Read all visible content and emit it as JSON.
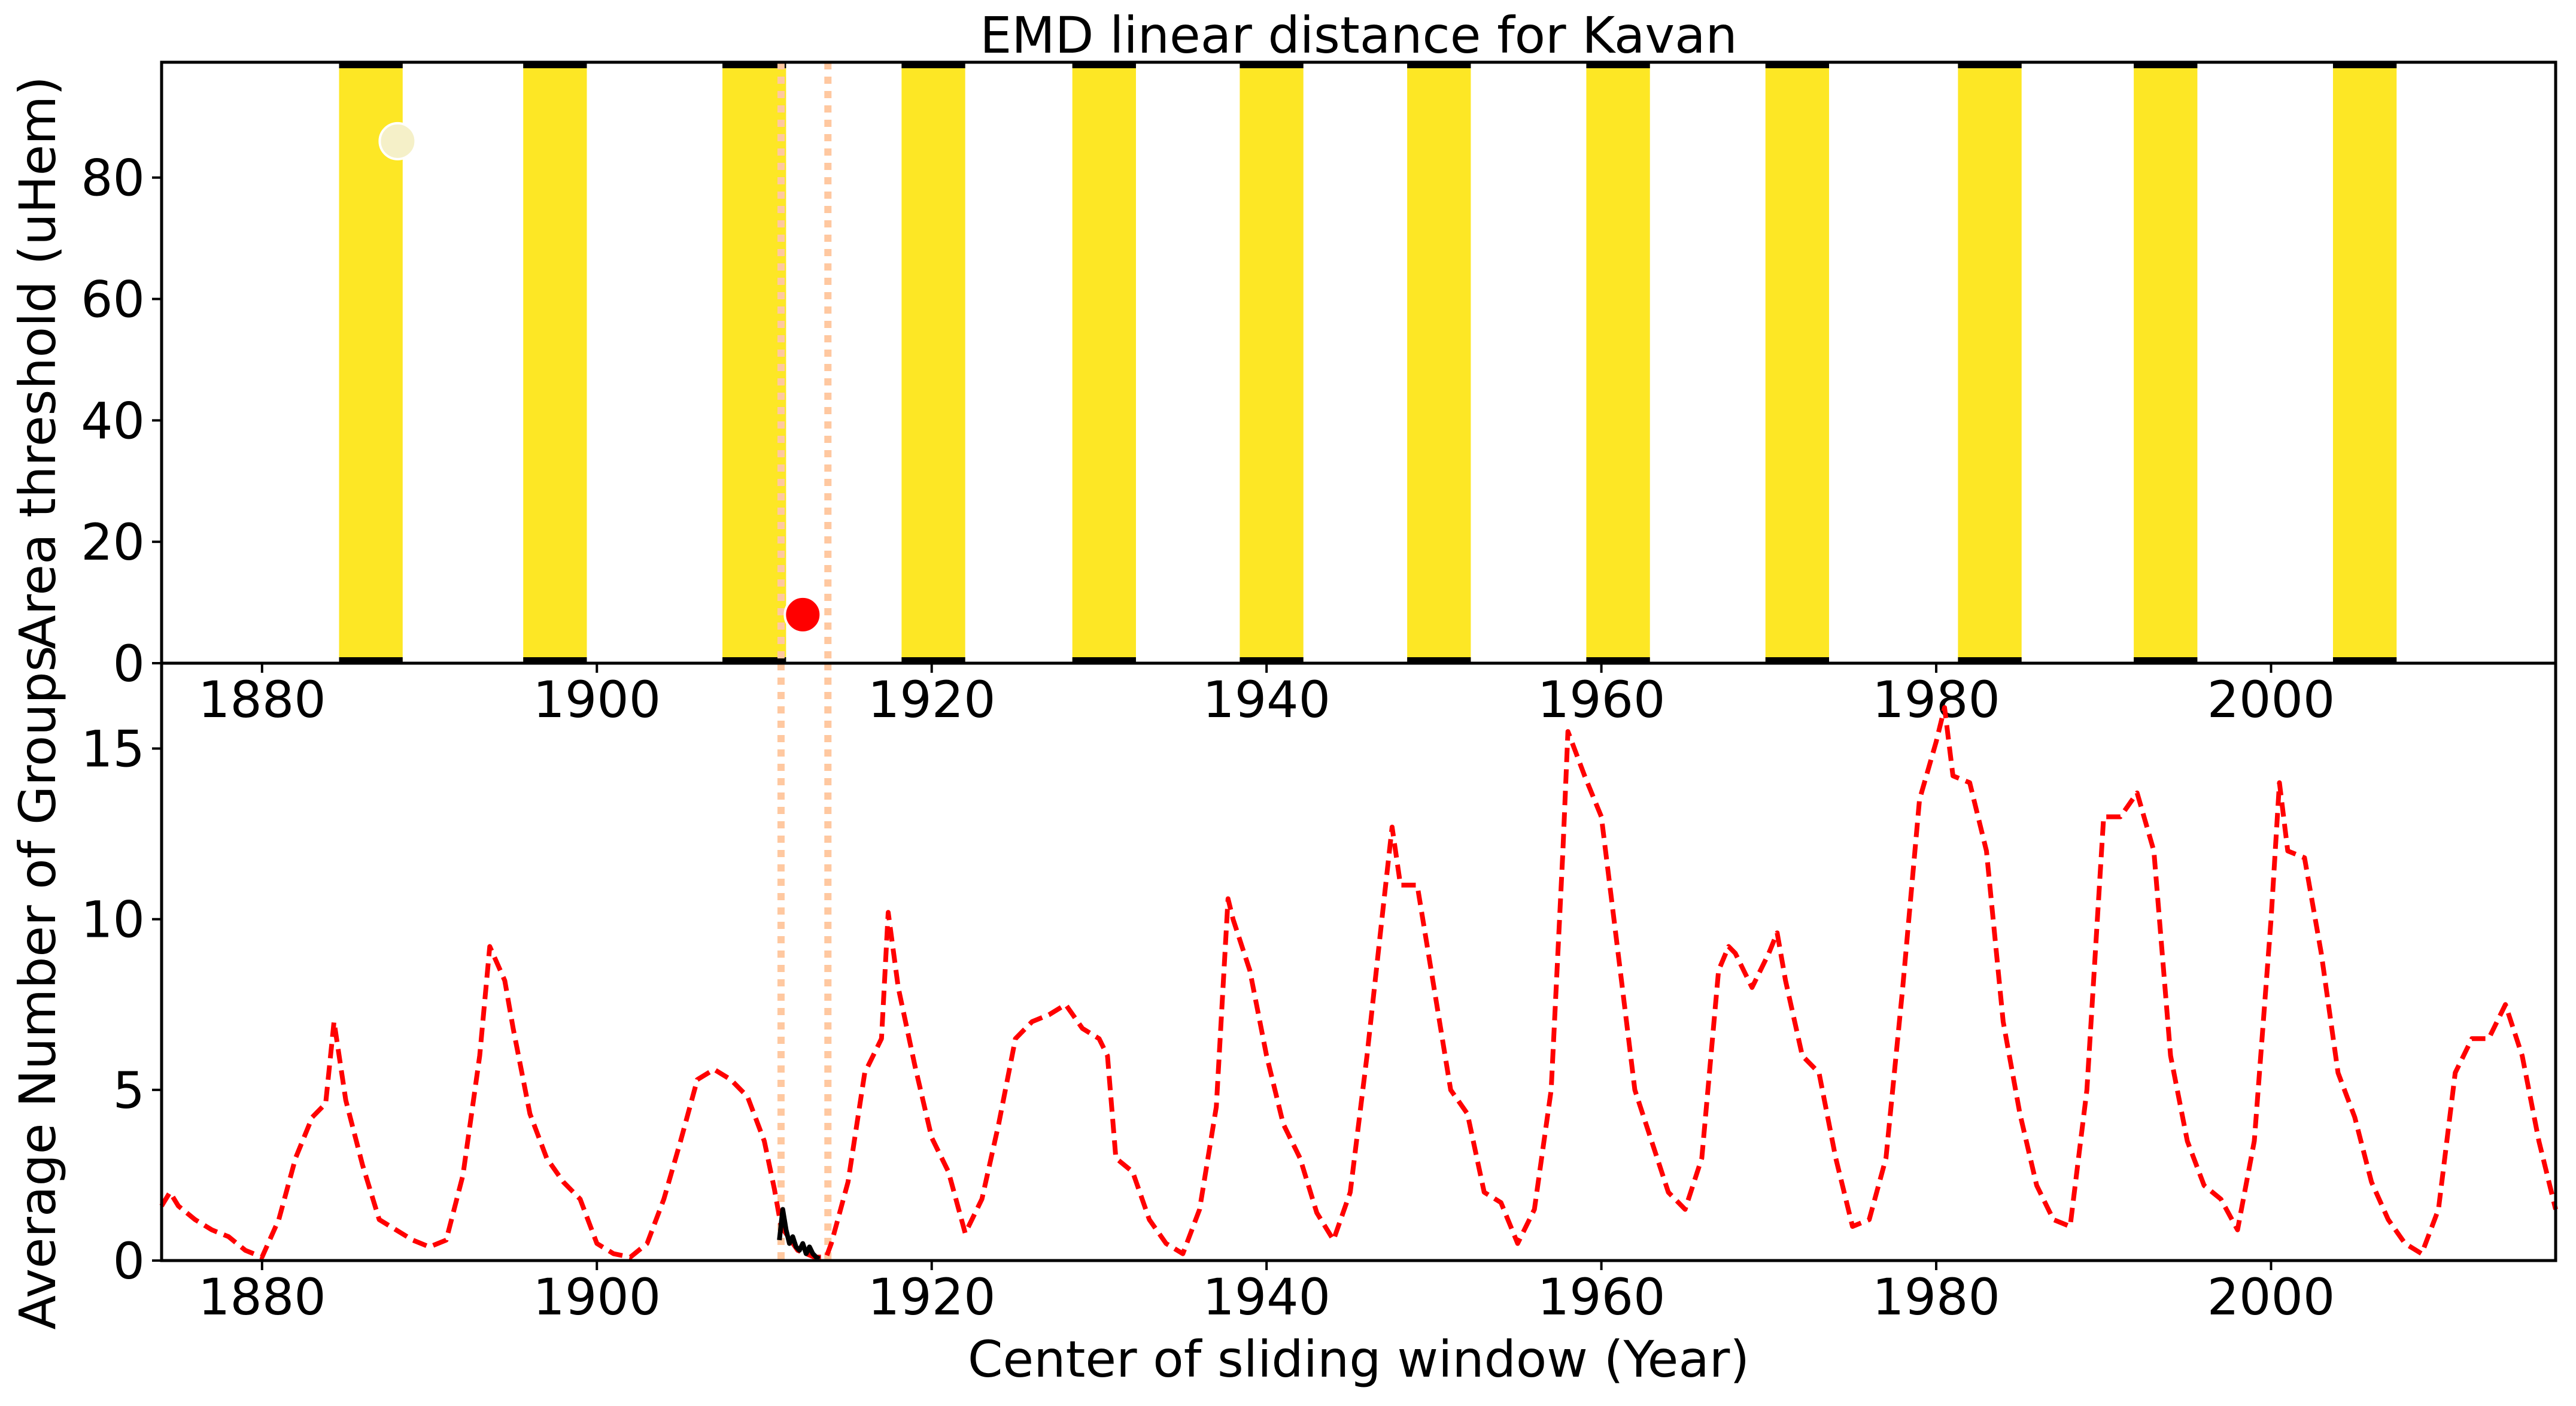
{
  "figure": {
    "title": "EMD linear distance for Kavan"
  },
  "chart_data": [
    {
      "type": "bar",
      "title": "EMD linear distance for Kavan",
      "xlabel": "",
      "ylabel": "Area threshold (uHem)",
      "xlim": [
        1874,
        2017
      ],
      "ylim": [
        0,
        99
      ],
      "xticks": [
        "1880",
        "1900",
        "1920",
        "1940",
        "1960",
        "1980",
        "2000"
      ],
      "yticks": [
        "0",
        "20",
        "40",
        "60",
        "80"
      ],
      "bands": [
        {
          "x0": 1884.6,
          "x1": 1888.4
        },
        {
          "x0": 1895.6,
          "x1": 1899.4
        },
        {
          "x0": 1907.5,
          "x1": 1911.3
        },
        {
          "x0": 1918.2,
          "x1": 1922.0
        },
        {
          "x0": 1928.4,
          "x1": 1932.2
        },
        {
          "x0": 1938.4,
          "x1": 1942.2
        },
        {
          "x0": 1948.4,
          "x1": 1952.2
        },
        {
          "x0": 1959.1,
          "x1": 1962.9
        },
        {
          "x0": 1969.8,
          "x1": 1973.6
        },
        {
          "x0": 1981.3,
          "x1": 1985.1
        },
        {
          "x0": 1991.8,
          "x1": 1995.6
        },
        {
          "x0": 2003.7,
          "x1": 2007.5
        }
      ],
      "band_color": "#fde725",
      "band_edge_color": "#000000",
      "markers": [
        {
          "x": 1888.1,
          "y": 86,
          "color": "#f5f0c8"
        },
        {
          "x": 1912.3,
          "y": 8,
          "color": "#ff0000"
        }
      ],
      "vlines": [
        1911.0,
        1913.8
      ],
      "vline_color": "#ffc8a0"
    },
    {
      "type": "line",
      "xlabel": "Center of sliding window (Year)",
      "ylabel": "Average Number of Groups",
      "xlim": [
        1874,
        2017
      ],
      "ylim": [
        0,
        17.5
      ],
      "xticks": [
        "1880",
        "1900",
        "1920",
        "1940",
        "1960",
        "1980",
        "2000"
      ],
      "yticks": [
        "0",
        "5",
        "10",
        "15"
      ],
      "vlines": [
        1911.0,
        1913.8
      ],
      "vline_color": "#ffc8a0",
      "series": [
        {
          "style": "dashed",
          "color": "#ff0000",
          "x": [
            1874,
            1874.5,
            1875,
            1876,
            1877,
            1878,
            1879,
            1880,
            1881,
            1882,
            1883,
            1883.8,
            1884.3,
            1885,
            1886,
            1887,
            1888,
            1889,
            1890,
            1891,
            1892,
            1893,
            1893.6,
            1894.5,
            1895,
            1896,
            1897,
            1898,
            1899,
            1900,
            1901,
            1902,
            1903,
            1904,
            1905,
            1906,
            1907,
            1908,
            1909,
            1910,
            1910.6,
            1911,
            1912,
            1913,
            1913.7,
            1914,
            1915,
            1916,
            1917,
            1917.4,
            1918,
            1919,
            1920,
            1921,
            1922,
            1923,
            1924,
            1925,
            1926,
            1927,
            1928,
            1929,
            1930,
            1930.5,
            1931,
            1932,
            1933,
            1934,
            1935,
            1936,
            1937,
            1937.7,
            1938,
            1939,
            1940,
            1941,
            1942,
            1943,
            1944,
            1945,
            1946,
            1947,
            1947.5,
            1948,
            1949,
            1950,
            1951,
            1952,
            1953,
            1954,
            1955,
            1956,
            1957,
            1957.7,
            1958,
            1959,
            1960,
            1961,
            1962,
            1963,
            1964,
            1965,
            1966,
            1967,
            1967.6,
            1968,
            1969,
            1970,
            1970.5,
            1971,
            1972,
            1973,
            1974,
            1975,
            1976,
            1977,
            1978,
            1979,
            1980,
            1980.5,
            1981,
            1982,
            1983,
            1984,
            1985,
            1986,
            1987,
            1988,
            1989,
            1990,
            1991,
            1992,
            1993,
            1994,
            1995,
            1996,
            1997,
            1998,
            1999,
            2000,
            2000.5,
            2001,
            2002,
            2003,
            2004,
            2005,
            2006,
            2007,
            2008,
            2009,
            2010,
            2011,
            2012,
            2013,
            2014,
            2015,
            2016,
            2017
          ],
          "y": [
            1.6,
            2.0,
            1.6,
            1.2,
            0.9,
            0.7,
            0.3,
            0.1,
            1.2,
            3.0,
            4.2,
            4.6,
            7.0,
            4.7,
            2.8,
            1.2,
            0.9,
            0.6,
            0.4,
            0.6,
            2.5,
            6.0,
            9.2,
            8.2,
            6.8,
            4.3,
            3.0,
            2.3,
            1.8,
            0.5,
            0.2,
            0.1,
            0.5,
            1.8,
            3.5,
            5.3,
            5.6,
            5.3,
            4.8,
            3.5,
            2.1,
            1.0,
            0.3,
            0.1,
            0.1,
            0.5,
            2.3,
            5.5,
            6.5,
            10.2,
            8.0,
            5.7,
            3.6,
            2.6,
            0.8,
            1.8,
            4.0,
            6.5,
            7.0,
            7.2,
            7.5,
            6.8,
            6.5,
            6.0,
            3.0,
            2.6,
            1.2,
            0.5,
            0.2,
            1.5,
            4.5,
            10.6,
            10.0,
            8.5,
            6.0,
            4.0,
            3.0,
            1.4,
            0.6,
            2.0,
            6.0,
            10.5,
            12.7,
            11.0,
            11.0,
            8.0,
            5.0,
            4.3,
            2.0,
            1.7,
            0.5,
            1.5,
            5.0,
            12.0,
            15.5,
            14.2,
            13.0,
            9.0,
            5.0,
            3.5,
            2.0,
            1.5,
            3.0,
            8.5,
            9.2,
            9.0,
            8.0,
            9.0,
            9.6,
            8.2,
            6.0,
            5.5,
            3.0,
            1.0,
            1.2,
            3.0,
            8.0,
            13.5,
            15.2,
            16.2,
            14.2,
            14.0,
            12.0,
            7.0,
            4.3,
            2.2,
            1.2,
            1.0,
            5.0,
            13.0,
            13.0,
            13.7,
            12.0,
            6.0,
            3.5,
            2.2,
            1.8,
            0.9,
            3.5,
            10.0,
            14.0,
            12.0,
            11.8,
            9.0,
            5.5,
            4.2,
            2.3,
            1.2,
            0.5,
            0.2,
            1.5,
            5.5,
            6.5,
            6.5,
            7.5,
            6.0,
            3.5,
            1.5
          ]
        },
        {
          "style": "solid",
          "color": "#000000",
          "x": [
            1910.9,
            1911.1,
            1911.3,
            1911.5,
            1911.7,
            1911.9,
            1912.1,
            1912.3,
            1912.5,
            1912.7,
            1912.9,
            1913.1,
            1913.3
          ],
          "y": [
            0.6,
            1.5,
            0.9,
            0.5,
            0.7,
            0.4,
            0.3,
            0.5,
            0.2,
            0.4,
            0.2,
            0.1,
            0.05
          ]
        }
      ]
    }
  ]
}
